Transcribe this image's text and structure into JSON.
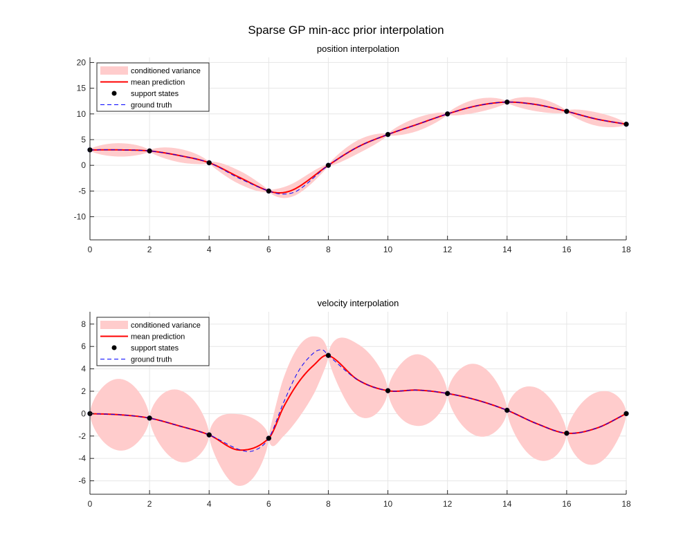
{
  "figure": {
    "title": "Sparse GP min-acc prior interpolation"
  },
  "colors": {
    "variance_fill": "#ffcccc",
    "mean_line": "#ff0000",
    "support_marker": "#000000",
    "ground_truth": "#0000ff",
    "grid": "#e6e6e6",
    "axis": "#262626"
  },
  "chart_data": [
    {
      "type": "line",
      "title": "position interpolation",
      "xlabel": "",
      "ylabel": "",
      "xlim": [
        0,
        18
      ],
      "ylim": [
        -14.5,
        21
      ],
      "xticks": [
        0,
        2,
        4,
        6,
        8,
        10,
        12,
        14,
        16,
        18
      ],
      "yticks": [
        -10,
        -5,
        0,
        5,
        10,
        15,
        20
      ],
      "grid": true,
      "legend_position": "top-left",
      "legend": [
        "conditioned variance",
        "mean prediction",
        "support states",
        "ground truth"
      ],
      "support": {
        "t": [
          0,
          2,
          4,
          6,
          8,
          10,
          12,
          14,
          16,
          18
        ],
        "y": [
          3.0,
          2.8,
          0.5,
          -5.0,
          0.0,
          6.0,
          10.0,
          12.3,
          10.5,
          8.0
        ],
        "v": [
          0.0,
          -0.4,
          -1.9,
          -2.2,
          5.2,
          2.05,
          1.8,
          0.3,
          -1.75,
          0.0
        ]
      },
      "mean": {
        "x": [
          0,
          1,
          2,
          3,
          4,
          5,
          6,
          6.5,
          7,
          8,
          9,
          10,
          11,
          12,
          13,
          14,
          15,
          16,
          17,
          18
        ],
        "y": [
          3.0,
          3.0,
          2.8,
          1.9,
          0.5,
          -2.3,
          -5.0,
          -5.3,
          -4.2,
          0.0,
          3.6,
          6.0,
          8.0,
          10.0,
          11.6,
          12.3,
          11.8,
          10.5,
          9.0,
          8.0
        ]
      },
      "ground_truth": {
        "x": [
          0,
          1,
          2,
          3,
          4,
          5,
          6,
          6.5,
          7,
          8,
          9,
          10,
          11,
          12,
          13,
          14,
          15,
          16,
          17,
          18
        ],
        "y": [
          3.0,
          3.0,
          2.8,
          1.9,
          0.5,
          -2.5,
          -5.0,
          -5.6,
          -4.8,
          0.0,
          3.6,
          6.0,
          8.0,
          10.0,
          11.6,
          12.3,
          11.8,
          10.5,
          9.0,
          8.0
        ]
      },
      "variance_halfwidth_max": 1.3
    },
    {
      "type": "line",
      "title": "velocity interpolation",
      "xlabel": "",
      "ylabel": "",
      "xlim": [
        0,
        18
      ],
      "ylim": [
        -7.2,
        9.1
      ],
      "xticks": [
        0,
        2,
        4,
        6,
        8,
        10,
        12,
        14,
        16,
        18
      ],
      "yticks": [
        -6,
        -4,
        -2,
        0,
        2,
        4,
        6,
        8
      ],
      "grid": true,
      "legend_position": "top-left",
      "legend": [
        "conditioned variance",
        "mean prediction",
        "support states",
        "ground truth"
      ],
      "support": {
        "t": [
          0,
          2,
          4,
          6,
          8,
          10,
          12,
          14,
          16,
          18
        ],
        "y": [
          0.0,
          -0.4,
          -1.9,
          -2.2,
          5.2,
          2.05,
          1.8,
          0.3,
          -1.75,
          0.0
        ]
      },
      "mean": {
        "x": [
          0,
          1,
          2,
          3,
          4,
          5,
          6,
          6.5,
          7,
          7.5,
          8,
          9,
          10,
          11,
          12,
          13,
          14,
          15,
          16,
          17,
          18
        ],
        "y": [
          0.0,
          -0.1,
          -0.4,
          -1.1,
          -1.9,
          -3.25,
          -2.2,
          0.6,
          2.8,
          4.3,
          5.2,
          3.0,
          2.05,
          2.1,
          1.8,
          1.2,
          0.3,
          -0.9,
          -1.75,
          -1.3,
          0.0
        ]
      },
      "ground_truth": {
        "x": [
          0,
          1,
          2,
          3,
          4,
          5,
          5.5,
          6,
          6.5,
          7,
          7.5,
          7.8,
          8,
          9,
          10,
          11,
          12,
          13,
          14,
          15,
          16,
          17,
          18
        ],
        "y": [
          0.0,
          -0.1,
          -0.4,
          -1.1,
          -1.9,
          -3.2,
          -3.3,
          -2.2,
          1.0,
          3.8,
          5.4,
          5.7,
          5.2,
          3.0,
          2.05,
          2.1,
          1.8,
          1.2,
          0.3,
          -0.9,
          -1.75,
          -1.3,
          0.0
        ]
      },
      "variance_halfwidth_max": 3.2
    }
  ]
}
